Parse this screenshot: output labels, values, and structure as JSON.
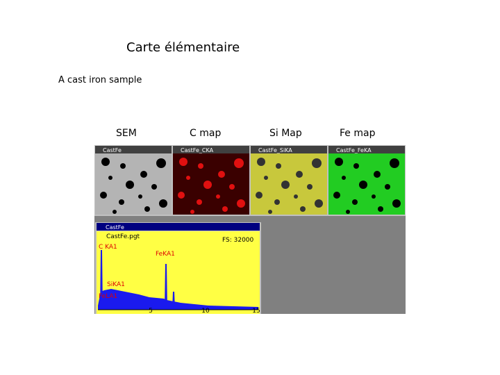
{
  "header": {
    "title": "Carte élémentaire",
    "subtitle": "A cast iron sample"
  },
  "maps": [
    {
      "label": "SEM",
      "window_title": "CastFe"
    },
    {
      "label": "C map",
      "window_title": "CastFe_CKA"
    },
    {
      "label": "Si Map",
      "window_title": "CastFe_SiKA"
    },
    {
      "label": "Fe map",
      "window_title": "CastFe_FeKA"
    }
  ],
  "spectrum": {
    "window_title": "CastFe",
    "file": "CastFe.pgt",
    "full_scale": "FS: 32000",
    "peaks": [
      "C KA1",
      "FeKA1",
      "SiKA1",
      "FeLA1"
    ],
    "axis_ticks": [
      5,
      10,
      15
    ]
  }
}
